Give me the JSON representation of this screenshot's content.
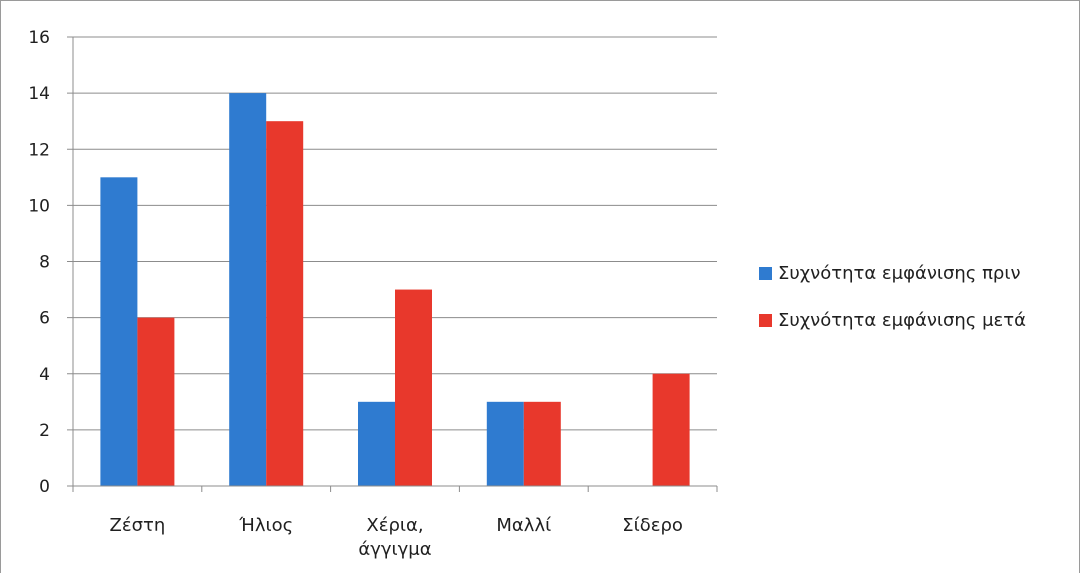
{
  "chart_data": {
    "type": "bar",
    "categories": [
      [
        "Ζέστη"
      ],
      [
        "Ήλιος"
      ],
      [
        "Χέρια,",
        "άγγιγμα"
      ],
      [
        "Μαλλί"
      ],
      [
        "Σίδερο"
      ]
    ],
    "series": [
      {
        "name": "Συχνότητα εμφάνισης πριν",
        "color": "#2f7bd0",
        "values": [
          11,
          14,
          3,
          3,
          0
        ]
      },
      {
        "name": "Συχνότητα εμφάνισης μετά",
        "color": "#e8382c",
        "values": [
          6,
          13,
          7,
          3,
          4
        ]
      }
    ],
    "ylim": [
      0,
      16
    ],
    "yticks": [
      "0",
      "2",
      "4",
      "6",
      "8",
      "10",
      "12",
      "14",
      "16"
    ],
    "grid": true,
    "legend_position": "right"
  }
}
